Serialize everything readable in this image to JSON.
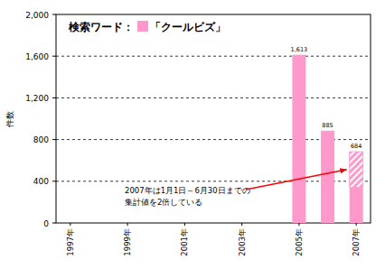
{
  "chart_data": {
    "type": "bar",
    "title": "検索ワード：",
    "y_label": "件数",
    "categories": [
      "1997年",
      null,
      "1999年",
      null,
      "2001年",
      null,
      "2003年",
      null,
      "2005年",
      null,
      "2007年"
    ],
    "series": [
      {
        "name": "「クールビズ」",
        "color": "#ff99cc",
        "values": [
          0,
          0,
          0,
          0,
          0,
          0,
          0,
          0,
          1613,
          885,
          684
        ],
        "value_labels": [
          null,
          null,
          null,
          null,
          null,
          null,
          null,
          null,
          "1,613",
          "885",
          "684"
        ],
        "measured": [
          0,
          0,
          0,
          0,
          0,
          0,
          0,
          0,
          1613,
          885,
          342
        ]
      }
    ],
    "ylim": [
      0,
      2000
    ],
    "yticks": [
      0,
      400,
      800,
      {
        "value": 1200,
        "label": "1,200"
      },
      {
        "value": 1600,
        "label": "1,600"
      },
      {
        "value": 2000,
        "label": "2,000"
      }
    ],
    "grid": true,
    "data_labels": true,
    "legend": "top-left",
    "annotations": [
      {
        "lines": [
          "2007年は1月1日～6月30日までの",
          "集計値を2倍している"
        ],
        "color": "#ff0000",
        "category_index": 10
      }
    ]
  }
}
